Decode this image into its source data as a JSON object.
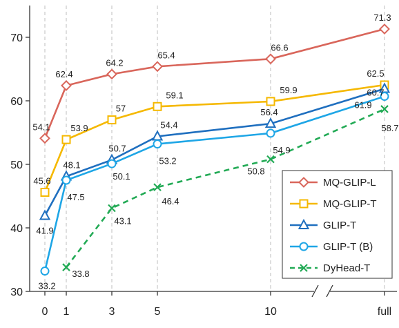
{
  "chart_data": {
    "type": "line",
    "title": "",
    "xlabel": "",
    "ylabel": "",
    "x_ticks": [
      "0",
      "1",
      "3",
      "5",
      "10",
      "full"
    ],
    "ylim": [
      30,
      75
    ],
    "y_ticks": [
      30,
      40,
      50,
      60,
      70
    ],
    "grid": "dashed vertical lines at x ticks",
    "axis_break": "between 10 and full",
    "legend_position": "bottom-right",
    "series": [
      {
        "name": "MQ-GLIP-L",
        "color": "#d9665b",
        "marker": "diamond",
        "line": "solid",
        "values": [
          54.1,
          62.4,
          64.2,
          65.4,
          66.6,
          71.3
        ],
        "labels": [
          "54.1",
          "62.4",
          "64.2",
          "65.4",
          "66.6",
          "71.3"
        ]
      },
      {
        "name": "MQ-GLIP-T",
        "color": "#f5b800",
        "marker": "square",
        "line": "solid",
        "values": [
          45.6,
          53.9,
          57.0,
          59.1,
          59.9,
          62.5
        ],
        "labels": [
          "45.6",
          "53.9",
          "57",
          "59.1",
          "59.9",
          "62.5"
        ]
      },
      {
        "name": "GLIP-T",
        "color": "#1f6fbf",
        "marker": "triangle",
        "line": "solid",
        "values": [
          41.9,
          48.1,
          50.7,
          54.4,
          56.4,
          61.9
        ],
        "labels": [
          "41.9",
          "48.1",
          "50.7",
          "54.4",
          "56.4",
          "61.9"
        ]
      },
      {
        "name": "GLIP-T (B)",
        "color": "#1ea6e6",
        "marker": "circle",
        "line": "solid",
        "values": [
          33.2,
          47.5,
          50.1,
          53.2,
          54.9,
          60.7
        ],
        "labels": [
          "33.2",
          "47.5",
          "50.1",
          "53.2",
          "54.9",
          "60.7"
        ]
      },
      {
        "name": "DyHead-T",
        "color": "#22aa55",
        "marker": "x",
        "line": "dashed",
        "values": [
          null,
          33.8,
          43.1,
          46.4,
          50.8,
          58.7
        ],
        "labels": [
          null,
          "33.8",
          "43.1",
          "46.4",
          "50.8",
          "58.7"
        ]
      }
    ]
  }
}
